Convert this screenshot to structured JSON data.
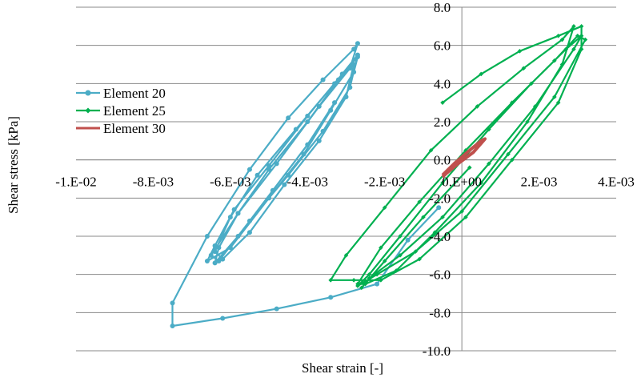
{
  "chart_data": {
    "type": "line",
    "title": "",
    "xlabel": "Shear strain [-]",
    "ylabel": "Shear stress [kPa]",
    "xlim": [
      -0.01,
      0.004
    ],
    "ylim": [
      -10,
      8
    ],
    "x_ticks": [
      {
        "value": -0.01,
        "label": "-1.E-02"
      },
      {
        "value": -0.008,
        "label": "-8.E-03"
      },
      {
        "value": -0.006,
        "label": "-6.E-03"
      },
      {
        "value": -0.004,
        "label": "-4.E-03"
      },
      {
        "value": -0.002,
        "label": "-2.E-03"
      },
      {
        "value": 0.0,
        "label": "0.E+00"
      },
      {
        "value": 0.002,
        "label": "2.E-03"
      },
      {
        "value": 0.004,
        "label": "4.E-03"
      }
    ],
    "y_ticks": [
      {
        "value": 8,
        "label": "8.0"
      },
      {
        "value": 6,
        "label": "6.0"
      },
      {
        "value": 4,
        "label": "4.0"
      },
      {
        "value": 2,
        "label": "2.0"
      },
      {
        "value": 0,
        "label": "0.0"
      },
      {
        "value": -2,
        "label": "-2.0"
      },
      {
        "value": -4,
        "label": "-4.0"
      },
      {
        "value": -6,
        "label": "-6.0"
      },
      {
        "value": -8,
        "label": "-8.0"
      },
      {
        "value": -10,
        "label": "-10.0"
      }
    ],
    "grid": "horizontal",
    "legend_position": "upper-left",
    "series": [
      {
        "name": "Element 20",
        "color": "#4bacc6",
        "marker": "circle",
        "x": [
          -0.0006,
          -0.0014,
          -0.0022,
          -0.0034,
          -0.0048,
          -0.0062,
          -0.0075,
          -0.0075,
          -0.0066,
          -0.0055,
          -0.0045,
          -0.0036,
          -0.0028,
          -0.0027,
          -0.0029,
          -0.0037,
          -0.0048,
          -0.0058,
          -0.0065,
          -0.0063,
          -0.0055,
          -0.0045,
          -0.0036,
          -0.0029,
          -0.0027,
          -0.0031,
          -0.004,
          -0.005,
          -0.0059,
          -0.0064,
          -0.0066,
          -0.006,
          -0.005,
          -0.0041,
          -0.0034,
          -0.0028,
          -0.0027,
          -0.0033,
          -0.0043,
          -0.0053,
          -0.006,
          -0.0064,
          -0.0062,
          -0.0055,
          -0.0046,
          -0.0037,
          -0.003,
          -0.0028,
          -0.0032,
          -0.004,
          -0.005,
          -0.0058,
          -0.0063,
          -0.0064,
          -0.0058,
          -0.0049,
          -0.004,
          -0.0033
        ],
        "y": [
          -2.5,
          -4.2,
          -6.5,
          -7.2,
          -7.8,
          -8.3,
          -8.7,
          -7.5,
          -4.0,
          -0.5,
          2.2,
          4.2,
          5.8,
          6.1,
          4.8,
          2.8,
          -0.2,
          -2.8,
          -5.0,
          -5.3,
          -3.2,
          -0.8,
          1.5,
          3.8,
          5.5,
          4.5,
          2.3,
          -0.3,
          -2.6,
          -4.5,
          -5.3,
          -4.6,
          -2.0,
          0.3,
          2.6,
          4.6,
          5.4,
          4.0,
          1.6,
          -0.8,
          -3.0,
          -4.8,
          -5.2,
          -3.8,
          -1.3,
          1.0,
          3.3,
          5.0,
          4.2,
          2.0,
          -0.5,
          -2.8,
          -4.6,
          -5.4,
          -4.0,
          -1.6,
          0.8,
          3.0
        ]
      },
      {
        "name": "Element 25",
        "color": "#00b050",
        "marker": "diamond",
        "x": [
          -0.0005,
          0.0005,
          0.0015,
          0.0025,
          0.0031,
          0.0031,
          0.0025,
          0.0013,
          0.0001,
          -0.0011,
          -0.0021,
          -0.0028,
          -0.0034,
          -0.003,
          -0.002,
          -0.0008,
          0.0004,
          0.0016,
          0.0026,
          0.0029,
          0.0026,
          0.0017,
          0.0005,
          -0.0007,
          -0.0017,
          -0.0025,
          -0.0027,
          -0.0021,
          -0.0011,
          0.0001,
          0.0013,
          0.0024,
          0.003,
          0.0032,
          0.0024,
          0.0012,
          0.0,
          -0.0012,
          -0.0022,
          -0.0027,
          -0.0024,
          -0.0016,
          -0.0005,
          0.0007,
          0.0018,
          0.0027,
          0.0031,
          0.0029,
          0.0019,
          0.0007,
          -0.0005,
          -0.0016,
          -0.0024,
          -0.0026,
          -0.002,
          -0.001,
          0.0002
        ],
        "y": [
          3.0,
          4.5,
          5.7,
          6.5,
          7.0,
          5.8,
          3.0,
          0.0,
          -3.0,
          -5.2,
          -6.3,
          -6.3,
          -6.3,
          -5.0,
          -2.5,
          0.5,
          2.8,
          4.8,
          6.3,
          7.0,
          5.0,
          2.0,
          -1.2,
          -3.8,
          -5.8,
          -6.5,
          -6.5,
          -4.6,
          -2.2,
          0.5,
          3.0,
          5.2,
          6.5,
          6.3,
          3.3,
          0.3,
          -2.7,
          -4.8,
          -6.0,
          -6.6,
          -6.0,
          -4.0,
          -1.2,
          1.6,
          4.0,
          5.8,
          6.5,
          5.8,
          2.8,
          -0.2,
          -3.0,
          -5.0,
          -6.2,
          -6.7,
          -5.3,
          -3.0,
          -0.4
        ]
      },
      {
        "name": "Element 30",
        "color": "#c0504d",
        "marker": "none",
        "x": [
          -0.0005,
          -0.0002,
          0.0002,
          0.0005,
          0.0006,
          0.0003,
          -0.0001,
          -0.0004,
          -0.0005
        ],
        "y": [
          -0.8,
          -0.2,
          0.5,
          1.0,
          1.1,
          0.4,
          -0.2,
          -0.7,
          -0.9
        ]
      }
    ]
  }
}
